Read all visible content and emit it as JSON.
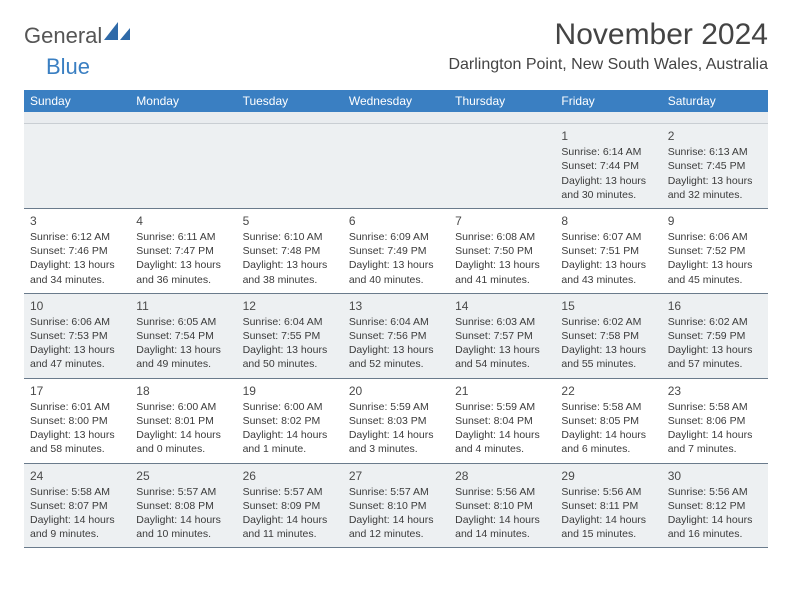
{
  "logo": {
    "general": "General",
    "blue": "Blue"
  },
  "title": "November 2024",
  "location": "Darlington Point, New South Wales, Australia",
  "colors": {
    "header_bg": "#3a7fc2",
    "header_text": "#ffffff",
    "shaded_bg": "#edf0f2",
    "spacer_bg": "#e9ecef",
    "week_border": "#6a7b8c",
    "text": "#3b3b3b",
    "title_text": "#444444"
  },
  "weekdays": [
    "Sunday",
    "Monday",
    "Tuesday",
    "Wednesday",
    "Thursday",
    "Friday",
    "Saturday"
  ],
  "weeks": [
    [
      {
        "num": "",
        "sunrise": "",
        "sunset": "",
        "daylight": ""
      },
      {
        "num": "",
        "sunrise": "",
        "sunset": "",
        "daylight": ""
      },
      {
        "num": "",
        "sunrise": "",
        "sunset": "",
        "daylight": ""
      },
      {
        "num": "",
        "sunrise": "",
        "sunset": "",
        "daylight": ""
      },
      {
        "num": "",
        "sunrise": "",
        "sunset": "",
        "daylight": ""
      },
      {
        "num": "1",
        "sunrise": "Sunrise: 6:14 AM",
        "sunset": "Sunset: 7:44 PM",
        "daylight": "Daylight: 13 hours and 30 minutes."
      },
      {
        "num": "2",
        "sunrise": "Sunrise: 6:13 AM",
        "sunset": "Sunset: 7:45 PM",
        "daylight": "Daylight: 13 hours and 32 minutes."
      }
    ],
    [
      {
        "num": "3",
        "sunrise": "Sunrise: 6:12 AM",
        "sunset": "Sunset: 7:46 PM",
        "daylight": "Daylight: 13 hours and 34 minutes."
      },
      {
        "num": "4",
        "sunrise": "Sunrise: 6:11 AM",
        "sunset": "Sunset: 7:47 PM",
        "daylight": "Daylight: 13 hours and 36 minutes."
      },
      {
        "num": "5",
        "sunrise": "Sunrise: 6:10 AM",
        "sunset": "Sunset: 7:48 PM",
        "daylight": "Daylight: 13 hours and 38 minutes."
      },
      {
        "num": "6",
        "sunrise": "Sunrise: 6:09 AM",
        "sunset": "Sunset: 7:49 PM",
        "daylight": "Daylight: 13 hours and 40 minutes."
      },
      {
        "num": "7",
        "sunrise": "Sunrise: 6:08 AM",
        "sunset": "Sunset: 7:50 PM",
        "daylight": "Daylight: 13 hours and 41 minutes."
      },
      {
        "num": "8",
        "sunrise": "Sunrise: 6:07 AM",
        "sunset": "Sunset: 7:51 PM",
        "daylight": "Daylight: 13 hours and 43 minutes."
      },
      {
        "num": "9",
        "sunrise": "Sunrise: 6:06 AM",
        "sunset": "Sunset: 7:52 PM",
        "daylight": "Daylight: 13 hours and 45 minutes."
      }
    ],
    [
      {
        "num": "10",
        "sunrise": "Sunrise: 6:06 AM",
        "sunset": "Sunset: 7:53 PM",
        "daylight": "Daylight: 13 hours and 47 minutes."
      },
      {
        "num": "11",
        "sunrise": "Sunrise: 6:05 AM",
        "sunset": "Sunset: 7:54 PM",
        "daylight": "Daylight: 13 hours and 49 minutes."
      },
      {
        "num": "12",
        "sunrise": "Sunrise: 6:04 AM",
        "sunset": "Sunset: 7:55 PM",
        "daylight": "Daylight: 13 hours and 50 minutes."
      },
      {
        "num": "13",
        "sunrise": "Sunrise: 6:04 AM",
        "sunset": "Sunset: 7:56 PM",
        "daylight": "Daylight: 13 hours and 52 minutes."
      },
      {
        "num": "14",
        "sunrise": "Sunrise: 6:03 AM",
        "sunset": "Sunset: 7:57 PM",
        "daylight": "Daylight: 13 hours and 54 minutes."
      },
      {
        "num": "15",
        "sunrise": "Sunrise: 6:02 AM",
        "sunset": "Sunset: 7:58 PM",
        "daylight": "Daylight: 13 hours and 55 minutes."
      },
      {
        "num": "16",
        "sunrise": "Sunrise: 6:02 AM",
        "sunset": "Sunset: 7:59 PM",
        "daylight": "Daylight: 13 hours and 57 minutes."
      }
    ],
    [
      {
        "num": "17",
        "sunrise": "Sunrise: 6:01 AM",
        "sunset": "Sunset: 8:00 PM",
        "daylight": "Daylight: 13 hours and 58 minutes."
      },
      {
        "num": "18",
        "sunrise": "Sunrise: 6:00 AM",
        "sunset": "Sunset: 8:01 PM",
        "daylight": "Daylight: 14 hours and 0 minutes."
      },
      {
        "num": "19",
        "sunrise": "Sunrise: 6:00 AM",
        "sunset": "Sunset: 8:02 PM",
        "daylight": "Daylight: 14 hours and 1 minute."
      },
      {
        "num": "20",
        "sunrise": "Sunrise: 5:59 AM",
        "sunset": "Sunset: 8:03 PM",
        "daylight": "Daylight: 14 hours and 3 minutes."
      },
      {
        "num": "21",
        "sunrise": "Sunrise: 5:59 AM",
        "sunset": "Sunset: 8:04 PM",
        "daylight": "Daylight: 14 hours and 4 minutes."
      },
      {
        "num": "22",
        "sunrise": "Sunrise: 5:58 AM",
        "sunset": "Sunset: 8:05 PM",
        "daylight": "Daylight: 14 hours and 6 minutes."
      },
      {
        "num": "23",
        "sunrise": "Sunrise: 5:58 AM",
        "sunset": "Sunset: 8:06 PM",
        "daylight": "Daylight: 14 hours and 7 minutes."
      }
    ],
    [
      {
        "num": "24",
        "sunrise": "Sunrise: 5:58 AM",
        "sunset": "Sunset: 8:07 PM",
        "daylight": "Daylight: 14 hours and 9 minutes."
      },
      {
        "num": "25",
        "sunrise": "Sunrise: 5:57 AM",
        "sunset": "Sunset: 8:08 PM",
        "daylight": "Daylight: 14 hours and 10 minutes."
      },
      {
        "num": "26",
        "sunrise": "Sunrise: 5:57 AM",
        "sunset": "Sunset: 8:09 PM",
        "daylight": "Daylight: 14 hours and 11 minutes."
      },
      {
        "num": "27",
        "sunrise": "Sunrise: 5:57 AM",
        "sunset": "Sunset: 8:10 PM",
        "daylight": "Daylight: 14 hours and 12 minutes."
      },
      {
        "num": "28",
        "sunrise": "Sunrise: 5:56 AM",
        "sunset": "Sunset: 8:10 PM",
        "daylight": "Daylight: 14 hours and 14 minutes."
      },
      {
        "num": "29",
        "sunrise": "Sunrise: 5:56 AM",
        "sunset": "Sunset: 8:11 PM",
        "daylight": "Daylight: 14 hours and 15 minutes."
      },
      {
        "num": "30",
        "sunrise": "Sunrise: 5:56 AM",
        "sunset": "Sunset: 8:12 PM",
        "daylight": "Daylight: 14 hours and 16 minutes."
      }
    ]
  ]
}
